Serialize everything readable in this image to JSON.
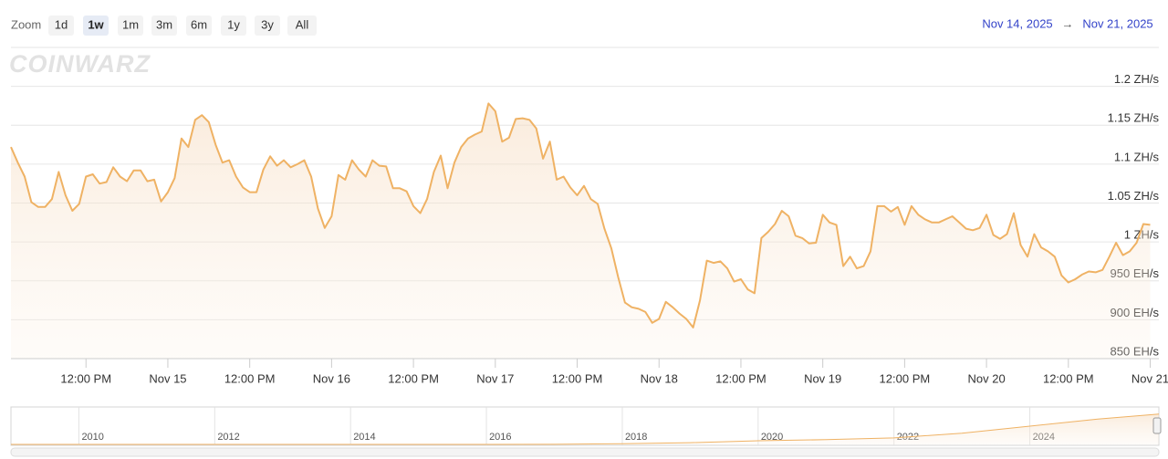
{
  "toolbar": {
    "zoom_label": "Zoom",
    "buttons": [
      "1d",
      "1w",
      "1m",
      "3m",
      "6m",
      "1y",
      "3y",
      "All"
    ],
    "selected": 1
  },
  "range": {
    "from": "Nov 14, 2025",
    "to": "Nov 21, 2025"
  },
  "watermark": "COINWARZ",
  "chart_data": [
    {
      "type": "line",
      "color": "#efb264",
      "grid": true,
      "x": [
        "2025-11-14T01:00",
        "2025-11-14T02:00",
        "2025-11-14T03:00",
        "2025-11-14T04:00",
        "2025-11-14T05:00",
        "2025-11-14T06:00",
        "2025-11-14T07:00",
        "2025-11-14T08:00",
        "2025-11-14T09:00",
        "2025-11-14T10:00",
        "2025-11-14T11:00",
        "2025-11-14T12:00",
        "2025-11-14T13:00",
        "2025-11-14T14:00",
        "2025-11-14T15:00",
        "2025-11-14T16:00",
        "2025-11-14T17:00",
        "2025-11-14T18:00",
        "2025-11-14T19:00",
        "2025-11-14T20:00",
        "2025-11-14T21:00",
        "2025-11-14T22:00",
        "2025-11-14T23:00",
        "2025-11-15T00:00",
        "2025-11-15T01:00",
        "2025-11-15T02:00",
        "2025-11-15T03:00",
        "2025-11-15T04:00",
        "2025-11-15T05:00",
        "2025-11-15T06:00",
        "2025-11-15T07:00",
        "2025-11-15T08:00",
        "2025-11-15T09:00",
        "2025-11-15T10:00",
        "2025-11-15T11:00",
        "2025-11-15T12:00",
        "2025-11-15T13:00",
        "2025-11-15T14:00",
        "2025-11-15T15:00",
        "2025-11-15T16:00",
        "2025-11-15T17:00",
        "2025-11-15T18:00",
        "2025-11-15T19:00",
        "2025-11-15T20:00",
        "2025-11-15T21:00",
        "2025-11-15T22:00",
        "2025-11-15T23:00",
        "2025-11-16T00:00",
        "2025-11-16T01:00",
        "2025-11-16T02:00",
        "2025-11-16T03:00",
        "2025-11-16T04:00",
        "2025-11-16T05:00",
        "2025-11-16T06:00",
        "2025-11-16T07:00",
        "2025-11-16T08:00",
        "2025-11-16T09:00",
        "2025-11-16T10:00",
        "2025-11-16T11:00",
        "2025-11-16T12:00",
        "2025-11-16T13:00",
        "2025-11-16T14:00",
        "2025-11-16T15:00",
        "2025-11-16T16:00",
        "2025-11-16T17:00",
        "2025-11-16T18:00",
        "2025-11-16T19:00",
        "2025-11-16T20:00",
        "2025-11-16T21:00",
        "2025-11-16T22:00",
        "2025-11-16T23:00",
        "2025-11-17T00:00",
        "2025-11-17T01:00",
        "2025-11-17T02:00",
        "2025-11-17T03:00",
        "2025-11-17T04:00",
        "2025-11-17T05:00",
        "2025-11-17T06:00",
        "2025-11-17T07:00",
        "2025-11-17T08:00",
        "2025-11-17T09:00",
        "2025-11-17T10:00",
        "2025-11-17T11:00",
        "2025-11-17T12:00",
        "2025-11-17T13:00",
        "2025-11-17T14:00",
        "2025-11-17T15:00",
        "2025-11-17T16:00",
        "2025-11-17T17:00",
        "2025-11-17T18:00",
        "2025-11-17T19:00",
        "2025-11-17T20:00",
        "2025-11-17T21:00",
        "2025-11-17T22:00",
        "2025-11-17T23:00",
        "2025-11-18T00:00",
        "2025-11-18T01:00",
        "2025-11-18T02:00",
        "2025-11-18T03:00",
        "2025-11-18T04:00",
        "2025-11-18T05:00",
        "2025-11-18T06:00",
        "2025-11-18T07:00",
        "2025-11-18T08:00",
        "2025-11-18T09:00",
        "2025-11-18T10:00",
        "2025-11-18T11:00",
        "2025-11-18T12:00",
        "2025-11-18T13:00",
        "2025-11-18T14:00",
        "2025-11-18T15:00",
        "2025-11-18T16:00",
        "2025-11-18T17:00",
        "2025-11-18T18:00",
        "2025-11-18T19:00",
        "2025-11-18T20:00",
        "2025-11-18T21:00",
        "2025-11-18T22:00",
        "2025-11-18T23:00",
        "2025-11-19T00:00",
        "2025-11-19T01:00",
        "2025-11-19T02:00",
        "2025-11-19T03:00",
        "2025-11-19T04:00",
        "2025-11-19T05:00",
        "2025-11-19T06:00",
        "2025-11-19T07:00",
        "2025-11-19T08:00",
        "2025-11-19T09:00",
        "2025-11-19T10:00",
        "2025-11-19T11:00",
        "2025-11-19T12:00",
        "2025-11-19T13:00",
        "2025-11-19T14:00",
        "2025-11-19T15:00",
        "2025-11-19T16:00",
        "2025-11-19T17:00",
        "2025-11-19T18:00",
        "2025-11-19T19:00",
        "2025-11-19T20:00",
        "2025-11-19T21:00",
        "2025-11-19T22:00",
        "2025-11-19T23:00",
        "2025-11-20T00:00",
        "2025-11-20T01:00",
        "2025-11-20T02:00",
        "2025-11-20T03:00",
        "2025-11-20T04:00",
        "2025-11-20T05:00",
        "2025-11-20T06:00",
        "2025-11-20T07:00",
        "2025-11-20T08:00",
        "2025-11-20T09:00",
        "2025-11-20T10:00",
        "2025-11-20T11:00",
        "2025-11-20T12:00",
        "2025-11-20T13:00",
        "2025-11-20T14:00",
        "2025-11-20T15:00",
        "2025-11-20T16:00",
        "2025-11-20T17:00",
        "2025-11-20T18:00",
        "2025-11-20T19:00",
        "2025-11-20T20:00",
        "2025-11-20T21:00",
        "2025-11-20T22:00",
        "2025-11-20T23:00",
        "2025-11-21T00:00"
      ],
      "values": [
        1122,
        1102,
        1084,
        1051,
        1045,
        1045,
        1055,
        1090,
        1060,
        1040,
        1049,
        1084,
        1087,
        1075,
        1077,
        1096,
        1084,
        1078,
        1092,
        1092,
        1078,
        1080,
        1052,
        1064,
        1082,
        1133,
        1122,
        1157,
        1163,
        1154,
        1125,
        1102,
        1105,
        1084,
        1070,
        1064,
        1064,
        1093,
        1110,
        1098,
        1105,
        1096,
        1100,
        1105,
        1084,
        1043,
        1018,
        1033,
        1086,
        1080,
        1105,
        1093,
        1084,
        1105,
        1098,
        1097,
        1069,
        1069,
        1065,
        1046,
        1037,
        1055,
        1090,
        1111,
        1069,
        1102,
        1122,
        1133,
        1138,
        1142,
        1178,
        1168,
        1129,
        1134,
        1158,
        1159,
        1157,
        1146,
        1107,
        1129,
        1080,
        1084,
        1070,
        1060,
        1072,
        1055,
        1049,
        1017,
        992,
        955,
        922,
        916,
        914,
        910,
        896,
        901,
        923,
        916,
        908,
        901,
        890,
        925,
        976,
        973,
        975,
        966,
        949,
        952,
        939,
        934,
        1005,
        1013,
        1023,
        1040,
        1033,
        1008,
        1005,
        998,
        999,
        1035,
        1025,
        1022,
        969,
        981,
        966,
        969,
        988,
        1046,
        1046,
        1039,
        1045,
        1022,
        1046,
        1035,
        1029,
        1025,
        1025,
        1029,
        1033,
        1025,
        1017,
        1015,
        1018,
        1035,
        1009,
        1004,
        1010,
        1037,
        996,
        981,
        1010,
        993,
        988,
        981,
        957,
        948,
        952,
        958,
        962,
        961,
        964,
        981,
        999,
        983,
        988,
        999,
        1023,
        1022
      ],
      "xlim": [
        "2025-11-14T01:00",
        "2025-11-21T01:00"
      ],
      "xticks": [
        {
          "value": "2025-11-14T12:00",
          "label": "12:00 PM"
        },
        {
          "value": "2025-11-15T00:00",
          "label": "Nov 15"
        },
        {
          "value": "2025-11-15T12:00",
          "label": "12:00 PM"
        },
        {
          "value": "2025-11-16T00:00",
          "label": "Nov 16"
        },
        {
          "value": "2025-11-16T12:00",
          "label": "12:00 PM"
        },
        {
          "value": "2025-11-17T00:00",
          "label": "Nov 17"
        },
        {
          "value": "2025-11-17T12:00",
          "label": "12:00 PM"
        },
        {
          "value": "2025-11-18T00:00",
          "label": "Nov 18"
        },
        {
          "value": "2025-11-18T12:00",
          "label": "12:00 PM"
        },
        {
          "value": "2025-11-19T00:00",
          "label": "Nov 19"
        },
        {
          "value": "2025-11-19T12:00",
          "label": "12:00 PM"
        },
        {
          "value": "2025-11-20T00:00",
          "label": "Nov 20"
        },
        {
          "value": "2025-11-20T12:00",
          "label": "12:00 PM"
        },
        {
          "value": "2025-11-21T00:00",
          "label": "Nov 21"
        }
      ],
      "ylim": [
        850,
        1250
      ],
      "yticks": [
        {
          "value": 850,
          "label": "850 EH/s"
        },
        {
          "value": 900,
          "label": "900 EH/s"
        },
        {
          "value": 950,
          "label": "950 EH/s"
        },
        {
          "value": 1000,
          "label": "1 ZH/s"
        },
        {
          "value": 1050,
          "label": "1.05 ZH/s"
        },
        {
          "value": 1100,
          "label": "1.1 ZH/s"
        },
        {
          "value": 1150,
          "label": "1.15 ZH/s"
        },
        {
          "value": 1200,
          "label": "1.2 ZH/s"
        }
      ]
    },
    {
      "type": "line",
      "color": "#efb264",
      "x": [
        2009,
        2010,
        2011,
        2012,
        2013,
        2014,
        2015,
        2016,
        2017,
        2018,
        2019,
        2020,
        2021,
        2022,
        2023,
        2024,
        2025,
        2025.9
      ],
      "values": [
        0,
        0,
        0,
        0,
        0,
        0,
        0.4,
        1,
        3,
        25,
        60,
        130,
        170,
        230,
        400,
        650,
        900,
        1080
      ],
      "xlim": [
        2009,
        2025.9
      ],
      "xticks": [
        2010,
        2012,
        2014,
        2016,
        2018,
        2020,
        2022,
        2024
      ],
      "ylim": [
        0,
        1200
      ]
    }
  ]
}
